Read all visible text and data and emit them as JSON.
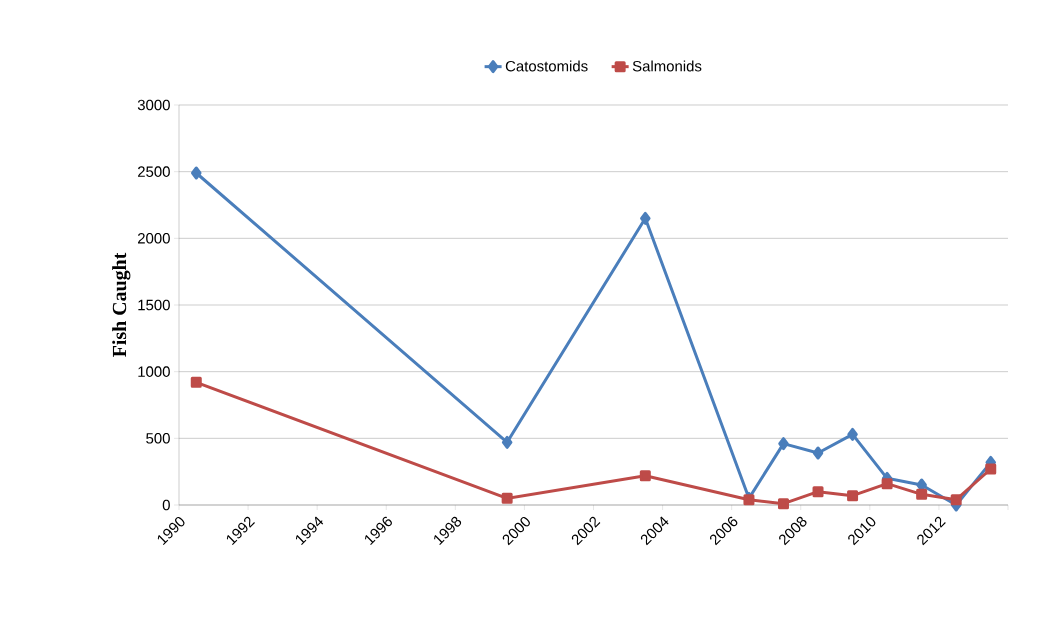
{
  "chart_data": {
    "type": "line",
    "ylabel": "Fish Caught",
    "x": [
      1990.5,
      1999.5,
      2003.5,
      2006.5,
      2007.5,
      2008.5,
      2009.5,
      2010.5,
      2011.5,
      2012.5,
      2013.5
    ],
    "series": [
      {
        "name": "Catostomids",
        "color": "#4a7ebb",
        "marker": "diamond",
        "values": [
          2490,
          470,
          2150,
          50,
          460,
          390,
          530,
          200,
          150,
          0,
          320
        ]
      },
      {
        "name": "Salmonids",
        "color": "#be4b48",
        "marker": "square",
        "values": [
          920,
          50,
          220,
          40,
          10,
          100,
          70,
          160,
          80,
          40,
          270
        ]
      }
    ],
    "xlim": [
      1990,
      2014
    ],
    "xticks": [
      1990,
      1992,
      1994,
      1996,
      1998,
      2000,
      2002,
      2004,
      2006,
      2008,
      2010,
      2012,
      {
        "value": 2014,
        "label": null
      }
    ],
    "ylim": [
      0,
      3000
    ],
    "yticks": [
      0,
      500,
      1000,
      1500,
      2000,
      2500,
      3000
    ],
    "grid": "y",
    "legend": "top",
    "line_style": "solid"
  }
}
